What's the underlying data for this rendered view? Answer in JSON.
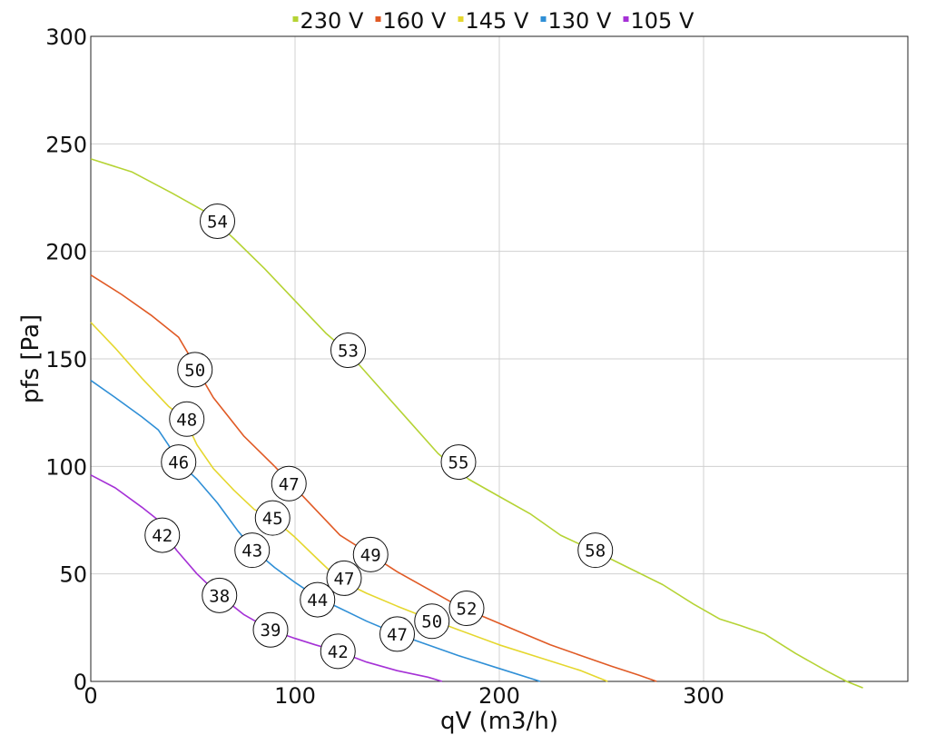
{
  "chart_data": {
    "type": "line",
    "xlabel": "qV (m3/h)",
    "ylabel": "pfs [Pa]",
    "xlim": [
      0,
      400
    ],
    "ylim": [
      0,
      300
    ],
    "xticks": [
      0,
      100,
      200,
      300
    ],
    "yticks": [
      0,
      50,
      100,
      150,
      200,
      250,
      300
    ],
    "grid": true,
    "legend_position": "top",
    "series": [
      {
        "name": "230 V",
        "color": "#b5d334",
        "points": [
          [
            0,
            243
          ],
          [
            20,
            237
          ],
          [
            40,
            227
          ],
          [
            55,
            219
          ],
          [
            70,
            206
          ],
          [
            85,
            192
          ],
          [
            100,
            177
          ],
          [
            115,
            162
          ],
          [
            126,
            153
          ],
          [
            140,
            138
          ],
          [
            155,
            122
          ],
          [
            170,
            106
          ],
          [
            185,
            94
          ],
          [
            200,
            86
          ],
          [
            215,
            78
          ],
          [
            230,
            68
          ],
          [
            248,
            60
          ],
          [
            265,
            52
          ],
          [
            280,
            45
          ],
          [
            295,
            36
          ],
          [
            308,
            29
          ],
          [
            318,
            26
          ],
          [
            330,
            22
          ],
          [
            345,
            13
          ],
          [
            360,
            5
          ],
          [
            370,
            0
          ],
          [
            378,
            -3
          ]
        ],
        "markers": [
          {
            "x": 62,
            "y": 214,
            "label": "54"
          },
          {
            "x": 126,
            "y": 154,
            "label": "53"
          },
          {
            "x": 180,
            "y": 102,
            "label": "55"
          },
          {
            "x": 247,
            "y": 61,
            "label": "58"
          }
        ]
      },
      {
        "name": "160 V",
        "color": "#e05a25",
        "points": [
          [
            0,
            189
          ],
          [
            15,
            180
          ],
          [
            30,
            170
          ],
          [
            43,
            160
          ],
          [
            48,
            152
          ],
          [
            52,
            145
          ],
          [
            60,
            132
          ],
          [
            75,
            114
          ],
          [
            90,
            100
          ],
          [
            97,
            93
          ],
          [
            110,
            80
          ],
          [
            122,
            68
          ],
          [
            137,
            59
          ],
          [
            150,
            51
          ],
          [
            165,
            43
          ],
          [
            180,
            35
          ],
          [
            195,
            29
          ],
          [
            210,
            23
          ],
          [
            225,
            17
          ],
          [
            240,
            12
          ],
          [
            255,
            7
          ],
          [
            268,
            3
          ],
          [
            277,
            0
          ]
        ],
        "markers": [
          {
            "x": 51,
            "y": 145,
            "label": "50"
          },
          {
            "x": 97,
            "y": 92,
            "label": "47"
          },
          {
            "x": 137,
            "y": 59,
            "label": "49"
          },
          {
            "x": 184,
            "y": 34,
            "label": "52"
          }
        ]
      },
      {
        "name": "145 V",
        "color": "#e5d72e",
        "points": [
          [
            0,
            167
          ],
          [
            12,
            155
          ],
          [
            25,
            141
          ],
          [
            38,
            128
          ],
          [
            46,
            122
          ],
          [
            52,
            110
          ],
          [
            60,
            99
          ],
          [
            70,
            89
          ],
          [
            80,
            80
          ],
          [
            89,
            76
          ],
          [
            100,
            67
          ],
          [
            112,
            56
          ],
          [
            122,
            47
          ],
          [
            135,
            41
          ],
          [
            150,
            35
          ],
          [
            166,
            29
          ],
          [
            180,
            24
          ],
          [
            200,
            17
          ],
          [
            220,
            11
          ],
          [
            240,
            5
          ],
          [
            253,
            0
          ]
        ],
        "markers": [
          {
            "x": 47,
            "y": 122,
            "label": "48"
          },
          {
            "x": 89,
            "y": 76,
            "label": "45"
          },
          {
            "x": 124,
            "y": 48,
            "label": "47"
          },
          {
            "x": 167,
            "y": 28,
            "label": "50"
          }
        ]
      },
      {
        "name": "130 V",
        "color": "#2f8fd6",
        "points": [
          [
            0,
            140
          ],
          [
            12,
            132
          ],
          [
            25,
            123
          ],
          [
            33,
            117
          ],
          [
            38,
            110
          ],
          [
            43,
            102
          ],
          [
            52,
            94
          ],
          [
            62,
            83
          ],
          [
            72,
            70
          ],
          [
            80,
            61
          ],
          [
            90,
            53
          ],
          [
            100,
            46
          ],
          [
            111,
            39
          ],
          [
            122,
            34
          ],
          [
            135,
            28
          ],
          [
            150,
            22
          ],
          [
            165,
            17
          ],
          [
            180,
            12
          ],
          [
            200,
            6
          ],
          [
            220,
            0
          ]
        ],
        "markers": [
          {
            "x": 43,
            "y": 102,
            "label": "46"
          },
          {
            "x": 79,
            "y": 61,
            "label": "43"
          },
          {
            "x": 111,
            "y": 38,
            "label": "44"
          },
          {
            "x": 150,
            "y": 22,
            "label": "47"
          }
        ]
      },
      {
        "name": "105 V",
        "color": "#a531d6",
        "points": [
          [
            0,
            96
          ],
          [
            12,
            90
          ],
          [
            25,
            81
          ],
          [
            33,
            75
          ],
          [
            36,
            69
          ],
          [
            42,
            61
          ],
          [
            52,
            50
          ],
          [
            63,
            40
          ],
          [
            75,
            31
          ],
          [
            88,
            24
          ],
          [
            100,
            20
          ],
          [
            110,
            17
          ],
          [
            121,
            14
          ],
          [
            135,
            9
          ],
          [
            150,
            5
          ],
          [
            165,
            2
          ],
          [
            172,
            0
          ]
        ],
        "markers": [
          {
            "x": 35,
            "y": 68,
            "label": "42"
          },
          {
            "x": 63,
            "y": 40,
            "label": "38"
          },
          {
            "x": 88,
            "y": 24,
            "label": "39"
          },
          {
            "x": 121,
            "y": 14,
            "label": "42"
          }
        ]
      }
    ]
  }
}
